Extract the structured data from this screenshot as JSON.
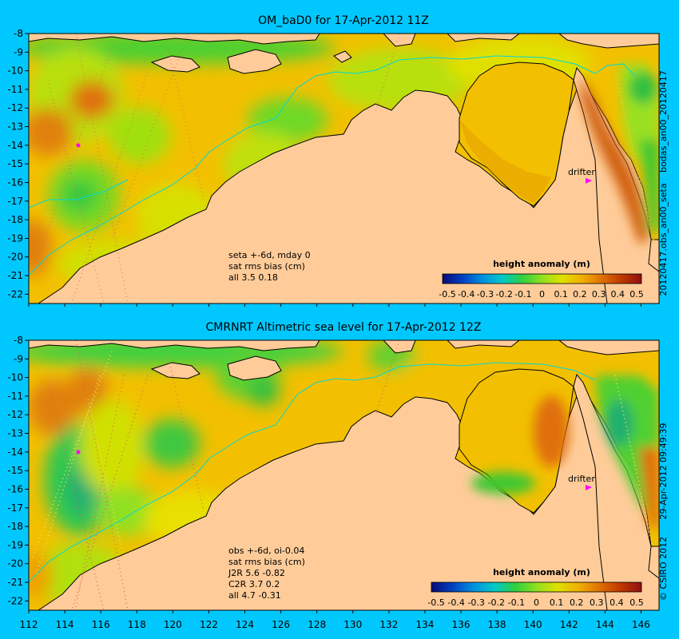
{
  "panels": [
    {
      "title": "OM_baD0 for 17-Apr-2012 11Z",
      "marker_label": "drifter",
      "notes": [
        "seta +-6d, mday 0",
        "sat rms bias (cm)",
        "all 3.5 0.18"
      ],
      "side_label": "20120417.obs_an00_seta",
      "side_label_top": "bodas_an00_20120417"
    },
    {
      "title": "CMRNRT Altimetric sea level  for 17-Apr-2012 12Z",
      "marker_label": "drifter",
      "notes": [
        "obs +-6d, oi-0.04",
        "sat rms bias (cm)",
        "J2R   5.6 -0.82",
        "C2R   3.7 0.2",
        "all 4.7 -0.31"
      ],
      "side_label": "29-Apr-2012 09:49:39",
      "side_label_top": "",
      "side_label_bottom": "© CSIRO 2012"
    }
  ],
  "colorbar": {
    "title": "height anomaly (m)",
    "ticks": [
      "-0.5",
      "-0.4",
      "-0.3",
      "-0.2",
      "-0.1",
      "0",
      "0.1",
      "0.2",
      "0.3",
      "0.4",
      "0.5"
    ],
    "colors": [
      "#0a0a78",
      "#0040c0",
      "#0090e0",
      "#00c8c8",
      "#30d040",
      "#90e020",
      "#e0e000",
      "#f0b000",
      "#e07000",
      "#c03800",
      "#901010"
    ]
  },
  "map": {
    "lon_ticks": [
      "112",
      "114",
      "116",
      "118",
      "120",
      "122",
      "124",
      "126",
      "128",
      "130",
      "132",
      "134",
      "136",
      "138",
      "140",
      "142",
      "144",
      "146"
    ],
    "lat_ticks": [
      "-8",
      "-9",
      "-10",
      "-11",
      "-12",
      "-13",
      "-14",
      "-15",
      "-16",
      "-17",
      "-18",
      "-19",
      "-20",
      "-21",
      "-22"
    ],
    "lon_range": [
      112,
      147
    ],
    "lat_range": [
      -8,
      -22.5
    ],
    "colors": {
      "land": "#ffcc99",
      "background": "#00c8ff",
      "coast": "#000000",
      "isobath": "#00d8d8",
      "drifter": "#ff00ff"
    }
  }
}
